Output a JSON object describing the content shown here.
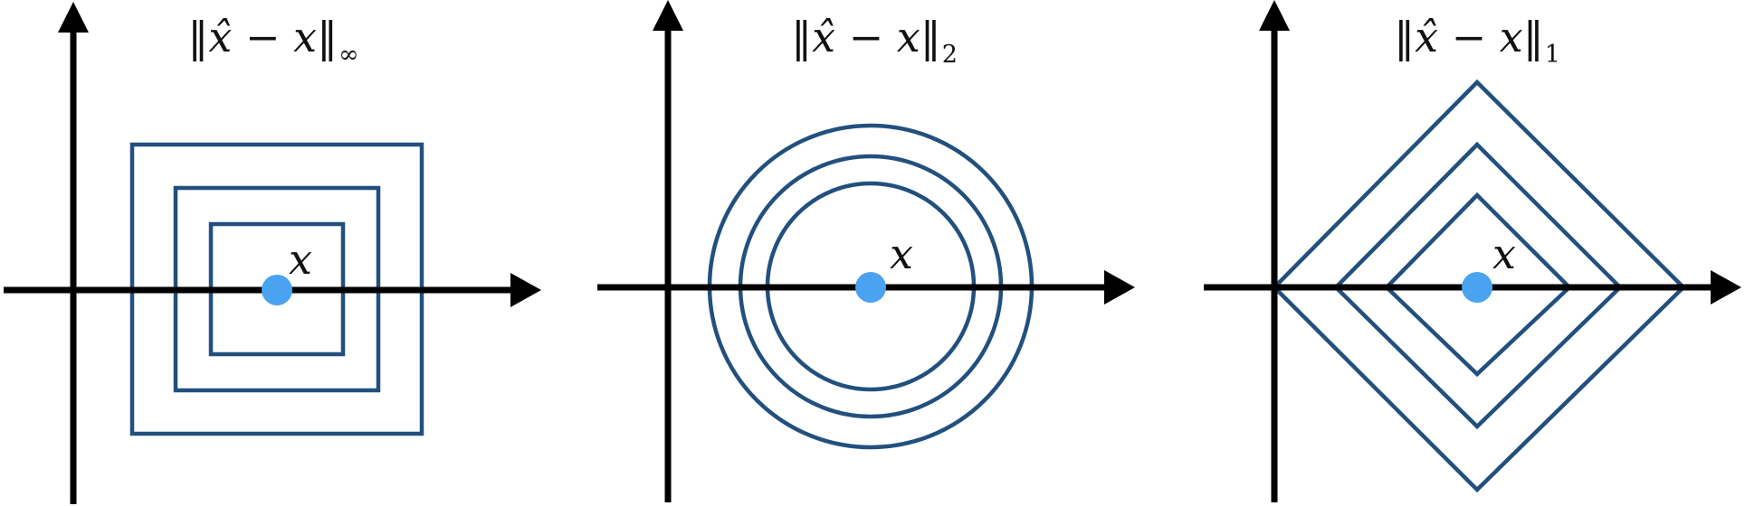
{
  "panels": [
    {
      "norm": "infinity",
      "title_main": "‖x̂ − x‖",
      "title_sub": "∞",
      "point_label": "x",
      "level_sets": 3
    },
    {
      "norm": "l2",
      "title_main": "‖x̂ − x‖",
      "title_sub": "2",
      "point_label": "x",
      "level_sets": 3
    },
    {
      "norm": "l1",
      "title_main": "‖x̂ − x‖",
      "title_sub": "1",
      "point_label": "x",
      "level_sets": 3
    }
  ],
  "colors": {
    "axis": "#000000",
    "contour": "#22507E",
    "point": "#4AA3F0"
  }
}
